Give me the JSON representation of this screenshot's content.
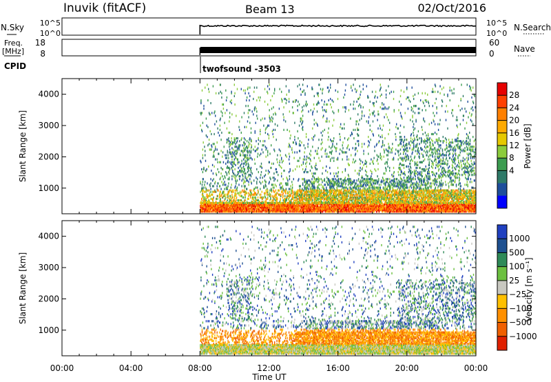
{
  "header": {
    "site": "Inuvik (fitACF)",
    "beam": "Beam 13",
    "date": "02/Oct/2016"
  },
  "top_panels": {
    "nsky_label": "N.Sky",
    "nsky_ticks": [
      "10^5",
      "10^0"
    ],
    "nsearch_label": "N.Search",
    "nsearch_ticks": [
      "10^5",
      "10^0"
    ],
    "freq_label": "Freq.",
    "freq_unit": "[MHz]",
    "freq_ticks": [
      "18",
      "8"
    ],
    "nave_label": "Nave",
    "nave_ticks": [
      "60",
      "0"
    ],
    "cpid_label": "CPID",
    "cpid_name": "twofsound -3503"
  },
  "chart_data": [
    {
      "type": "heatmap",
      "title": "",
      "xlabel": "",
      "ylabel": "Slant Range [km]",
      "xlim_hours": [
        0,
        24
      ],
      "ylim": [
        180,
        4500
      ],
      "yticks": [
        1000,
        2000,
        3000,
        4000
      ],
      "data_start_hour": 8,
      "colorbar": {
        "label": "Power [dB]",
        "ticks": [
          "28",
          "24",
          "20",
          "16",
          "12",
          "8",
          "4"
        ],
        "colors": [
          "#e60000",
          "#ff4000",
          "#ff8000",
          "#ffaa00",
          "#e6c800",
          "#8ccc3c",
          "#3c9c50",
          "#2e7a68",
          "#1e4e9c",
          "#0000ff"
        ]
      }
    },
    {
      "type": "heatmap",
      "title": "",
      "xlabel": "Time UT",
      "ylabel": "Slant Range [km]",
      "xlim_hours": [
        0,
        24
      ],
      "ylim": [
        180,
        4500
      ],
      "yticks": [
        1000,
        2000,
        3000,
        4000
      ],
      "xticks": [
        "00:00",
        "04:00",
        "08:00",
        "12:00",
        "16:00",
        "20:00",
        "00:00"
      ],
      "data_start_hour": 8,
      "colorbar": {
        "label": "Velocity [m s⁻¹]",
        "ticks": [
          "1000",
          "500",
          "100",
          "25",
          "−25",
          "−100",
          "−500",
          "−1000"
        ],
        "colors": [
          "#2040c0",
          "#1e5090",
          "#2e8a58",
          "#6cc040",
          "#c8c8c0",
          "#ffc000",
          "#ff9000",
          "#f06000",
          "#e02000"
        ]
      }
    }
  ]
}
